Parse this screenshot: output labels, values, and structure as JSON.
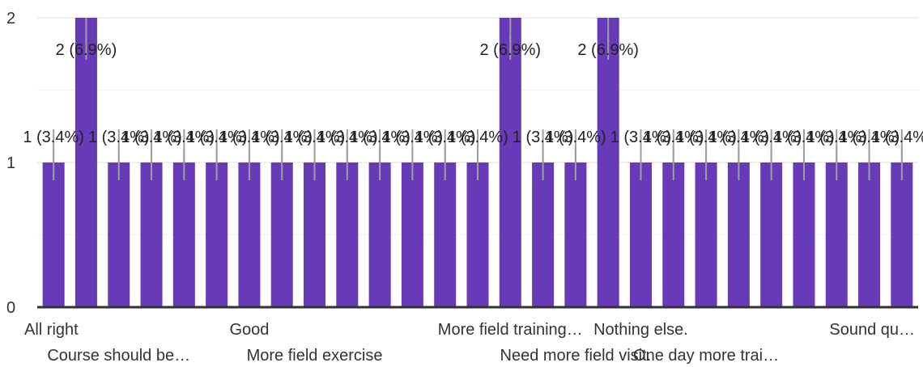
{
  "chart_data": {
    "type": "bar",
    "categories": [
      "All right",
      "",
      "Course should be…",
      "",
      "",
      "",
      "Good",
      "",
      "More field exercise",
      "",
      "",
      "",
      "",
      "",
      "More field training…",
      "",
      "Need more field visit.",
      "",
      "Nothing else.",
      "",
      "One day more trai…",
      "",
      "",
      "",
      "",
      "",
      "Sound qu…"
    ],
    "values": [
      1,
      2,
      1,
      1,
      1,
      1,
      1,
      1,
      1,
      1,
      1,
      1,
      1,
      1,
      2,
      1,
      1,
      2,
      1,
      1,
      1,
      1,
      1,
      1,
      1,
      1,
      1
    ],
    "data_labels": [
      "1 (3.4%)",
      "2 (6.9%)",
      "1 (3.4%)",
      "1 (3.4%)",
      "1 (3.4%)",
      "1 (3.4%)",
      "1 (3.4%)",
      "1 (3.4%)",
      "1 (3.4%)",
      "1 (3.4%)",
      "1 (3.4%)",
      "1 (3.4%)",
      "1 (3.4%)",
      "1 (3.4%)",
      "2 (6.9%)",
      "1 (3.4%)",
      "1 (3.4%)",
      "2 (6.9%)",
      "1 (3.4%)",
      "1 (3.4%)",
      "1 (3.4%)",
      "1 (3.4%)",
      "1 (3.4%)",
      "1 (3.4%)",
      "1 (3.4%)",
      "1 (3.4%)",
      "1 (3.4%)"
    ],
    "y_ticks": [
      "0",
      "1",
      "2"
    ],
    "ylim": [
      0,
      2
    ],
    "grid": true,
    "bar_color": "#673ab7"
  }
}
